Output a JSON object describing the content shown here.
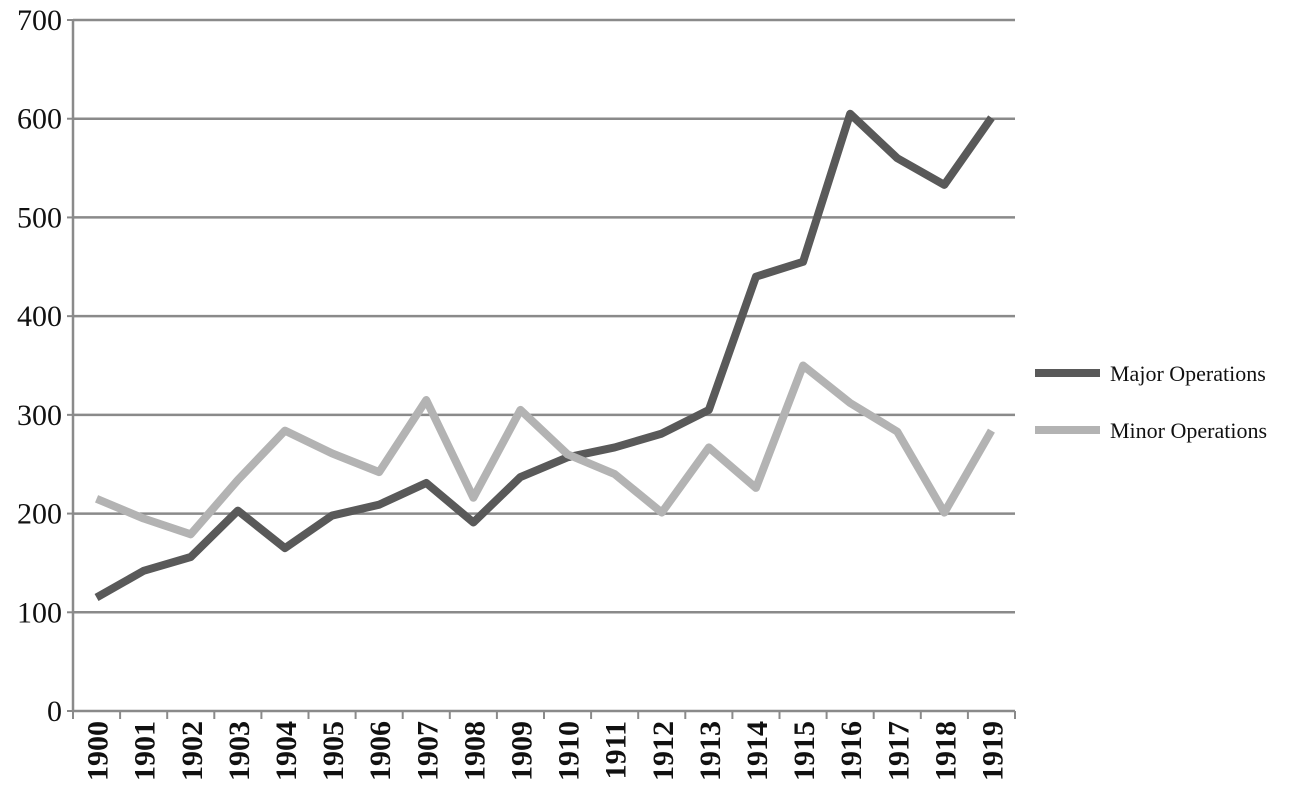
{
  "chart_data": {
    "type": "line",
    "categories": [
      "1900",
      "1901",
      "1902",
      "1903",
      "1904",
      "1905",
      "1906",
      "1907",
      "1908",
      "1909",
      "1910",
      "1911",
      "1912",
      "1913",
      "1914",
      "1915",
      "1916",
      "1917",
      "1918",
      "1919"
    ],
    "series": [
      {
        "name": "Major Operations",
        "color": "#595959",
        "values": [
          115,
          142,
          156,
          203,
          165,
          198,
          209,
          231,
          191,
          237,
          257,
          267,
          281,
          305,
          440,
          455,
          605,
          560,
          533,
          601
        ]
      },
      {
        "name": "Minor Operations",
        "color": "#b3b3b3",
        "values": [
          215,
          195,
          179,
          234,
          284,
          261,
          242,
          315,
          216,
          305,
          260,
          240,
          201,
          267,
          226,
          350,
          312,
          283,
          201,
          284
        ]
      }
    ],
    "ylim": [
      0,
      700
    ],
    "yticks": [
      0,
      100,
      200,
      300,
      400,
      500,
      600,
      700
    ],
    "grid": true,
    "legend": "right"
  }
}
